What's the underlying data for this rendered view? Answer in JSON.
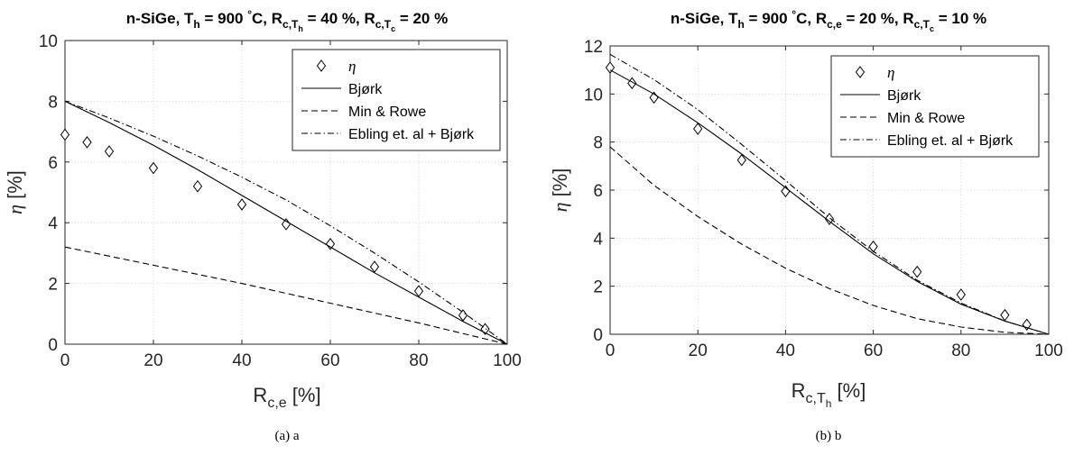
{
  "figure": {
    "panels": [
      {
        "title_parts": {
          "main": "n-SiGe, T",
          "sub_h": "h",
          "mid1": " = 900 ",
          "deg": "°",
          "mid2": "C, R",
          "sub_p2": "c,T",
          "sub_p2_sub": "h",
          "mid3": " = 40 %, R",
          "sub_p3": "c,T",
          "sub_p3_sub": "c",
          "end": " = 20 %"
        },
        "xlabel_parts": {
          "main": "R",
          "sub": "c,e",
          "sub2": "",
          "unit": " [%]"
        },
        "ylabel": "η [%]",
        "caption": "(a) a"
      },
      {
        "title_parts": {
          "main": "n-SiGe, T",
          "sub_h": "h",
          "mid1": " = 900 ",
          "deg": "°",
          "mid2": "C, R",
          "sub_p2": "c,e",
          "sub_p2_sub": "",
          "mid3": " = 20 %, R",
          "sub_p3": "c,T",
          "sub_p3_sub": "c",
          "end": " = 10 %"
        },
        "xlabel_parts": {
          "main": "R",
          "sub": "c,T",
          "sub2": "h",
          "unit": " [%]"
        },
        "ylabel": "η [%]",
        "caption": "(b) b"
      }
    ]
  },
  "chart_data": [
    {
      "type": "line",
      "xlim": [
        0,
        100
      ],
      "ylim": [
        0,
        10
      ],
      "xticks": [
        0,
        20,
        40,
        60,
        80,
        100
      ],
      "yticks": [
        0,
        2,
        4,
        6,
        8,
        10
      ],
      "grid": true,
      "legend_position": "top-right",
      "legend": [
        "η",
        "Bjørk",
        "Min & Rowe",
        "Ebling et. al + Bjørk"
      ],
      "series": [
        {
          "name": "η",
          "style": "diamond-markers",
          "x": [
            0,
            5,
            10,
            20,
            30,
            40,
            50,
            60,
            70,
            80,
            90,
            95
          ],
          "y": [
            6.9,
            6.65,
            6.35,
            5.8,
            5.2,
            4.6,
            3.95,
            3.3,
            2.55,
            1.75,
            0.95,
            0.5
          ]
        },
        {
          "name": "Bjørk",
          "style": "solid",
          "x": [
            0,
            10,
            20,
            30,
            40,
            50,
            60,
            70,
            80,
            90,
            100
          ],
          "y": [
            8.0,
            7.3,
            6.55,
            5.75,
            4.9,
            4.05,
            3.2,
            2.35,
            1.55,
            0.75,
            0.0
          ]
        },
        {
          "name": "Min & Rowe",
          "style": "dashed",
          "x": [
            0,
            20,
            40,
            60,
            80,
            100
          ],
          "y": [
            3.2,
            2.6,
            2.0,
            1.35,
            0.7,
            0.0
          ]
        },
        {
          "name": "Ebling et. al + Bjørk",
          "style": "dashdot",
          "x": [
            0,
            10,
            20,
            30,
            40,
            50,
            60,
            70,
            80,
            90,
            100
          ],
          "y": [
            8.0,
            7.45,
            6.85,
            6.2,
            5.5,
            4.75,
            3.9,
            3.0,
            2.05,
            1.05,
            0.0
          ]
        }
      ]
    },
    {
      "type": "line",
      "xlim": [
        0,
        100
      ],
      "ylim": [
        0,
        12
      ],
      "xticks": [
        0,
        20,
        40,
        60,
        80,
        100
      ],
      "yticks": [
        0,
        2,
        4,
        6,
        8,
        10,
        12
      ],
      "grid": true,
      "legend_position": "top-right",
      "legend": [
        "η",
        "Bjørk",
        "Min & Rowe",
        "Ebling et. al + Bjørk"
      ],
      "series": [
        {
          "name": "η",
          "style": "diamond-markers",
          "x": [
            0,
            5,
            10,
            20,
            30,
            40,
            50,
            60,
            70,
            80,
            90,
            95
          ],
          "y": [
            11.1,
            10.45,
            9.85,
            8.55,
            7.25,
            5.95,
            4.8,
            3.65,
            2.6,
            1.65,
            0.8,
            0.4
          ]
        },
        {
          "name": "Bjørk",
          "style": "solid",
          "x": [
            0,
            10,
            20,
            30,
            40,
            50,
            60,
            70,
            80,
            90,
            100
          ],
          "y": [
            11.0,
            10.0,
            8.8,
            7.5,
            6.1,
            4.7,
            3.35,
            2.2,
            1.25,
            0.55,
            0.0
          ]
        },
        {
          "name": "Min & Rowe",
          "style": "dashed",
          "x": [
            0,
            10,
            20,
            30,
            40,
            50,
            60,
            70,
            80,
            90,
            100
          ],
          "y": [
            7.8,
            6.2,
            4.9,
            3.75,
            2.75,
            1.9,
            1.2,
            0.65,
            0.3,
            0.08,
            0.0
          ]
        },
        {
          "name": "Ebling et. al + Bjørk",
          "style": "dashdot",
          "x": [
            0,
            10,
            20,
            30,
            40,
            50,
            60,
            70,
            80,
            90,
            100
          ],
          "y": [
            11.65,
            10.6,
            9.35,
            7.9,
            6.4,
            4.85,
            3.45,
            2.25,
            1.3,
            0.55,
            0.0
          ]
        }
      ]
    }
  ]
}
